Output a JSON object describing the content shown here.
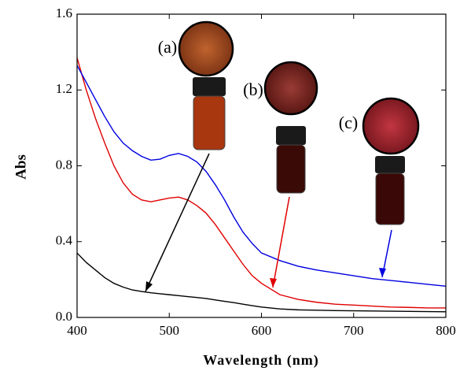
{
  "chart_data": {
    "type": "line",
    "xlabel": "Wavelength (nm)",
    "ylabel": "Abs",
    "x": [
      400,
      410,
      420,
      430,
      440,
      450,
      460,
      470,
      480,
      490,
      500,
      510,
      520,
      530,
      540,
      550,
      560,
      570,
      580,
      590,
      600,
      620,
      640,
      660,
      680,
      700,
      720,
      740,
      760,
      780,
      800
    ],
    "series": [
      {
        "name": "(a)",
        "color": "#000000",
        "values": [
          0.34,
          0.29,
          0.25,
          0.21,
          0.18,
          0.16,
          0.145,
          0.137,
          0.13,
          0.125,
          0.12,
          0.115,
          0.11,
          0.105,
          0.1,
          0.092,
          0.085,
          0.078,
          0.07,
          0.062,
          0.055,
          0.045,
          0.04,
          0.038,
          0.036,
          0.035,
          0.034,
          0.033,
          0.032,
          0.031,
          0.03
        ]
      },
      {
        "name": "(b)",
        "color": "#e00000",
        "values": [
          1.37,
          1.2,
          1.05,
          0.92,
          0.8,
          0.71,
          0.65,
          0.62,
          0.61,
          0.62,
          0.63,
          0.635,
          0.62,
          0.59,
          0.55,
          0.49,
          0.42,
          0.35,
          0.28,
          0.22,
          0.18,
          0.12,
          0.095,
          0.08,
          0.07,
          0.065,
          0.06,
          0.055,
          0.053,
          0.05,
          0.05
        ]
      },
      {
        "name": "(c)",
        "color": "#0000e0",
        "values": [
          1.33,
          1.24,
          1.15,
          1.06,
          0.98,
          0.92,
          0.88,
          0.85,
          0.83,
          0.835,
          0.855,
          0.865,
          0.85,
          0.82,
          0.77,
          0.7,
          0.62,
          0.53,
          0.45,
          0.39,
          0.34,
          0.3,
          0.27,
          0.25,
          0.235,
          0.22,
          0.205,
          0.195,
          0.185,
          0.175,
          0.165
        ]
      }
    ],
    "xlim": [
      400,
      800
    ],
    "xticks": [
      400,
      500,
      600,
      700,
      800
    ],
    "ylim": [
      0,
      1.6
    ],
    "yticks": [
      {
        "value": 0,
        "label": "0.0"
      },
      0.4,
      0.8,
      1.2,
      1.6
    ]
  }
}
